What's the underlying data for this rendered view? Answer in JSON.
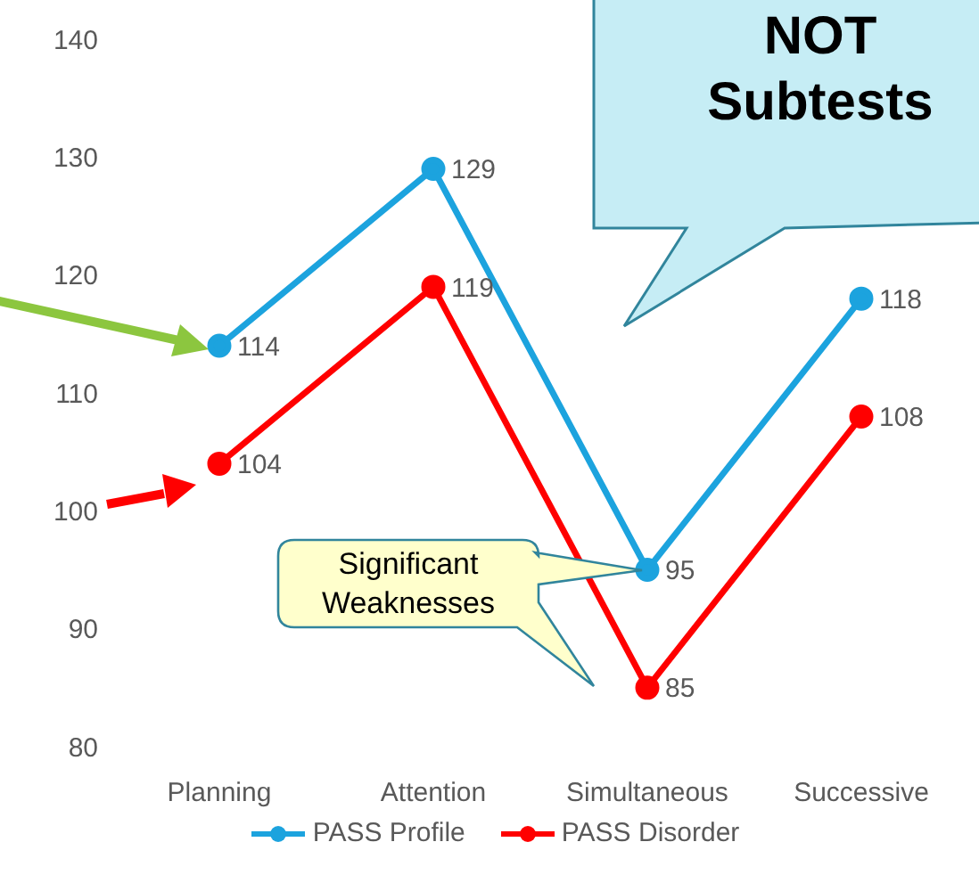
{
  "chart_data": {
    "type": "line",
    "categories": [
      "Planning",
      "Attention",
      "Simultaneous",
      "Successive"
    ],
    "series": [
      {
        "name": "PASS Profile",
        "color": "#1ca3de",
        "values": [
          114,
          129,
          95,
          118
        ]
      },
      {
        "name": "PASS Disorder",
        "color": "#ff0000",
        "values": [
          104,
          119,
          85,
          108
        ]
      }
    ],
    "ylim": [
      80,
      140
    ],
    "yticks": [
      80,
      90,
      100,
      110,
      120,
      130,
      140
    ],
    "grid": false,
    "legend": "bottom",
    "marker": "circle",
    "line_style": "solid",
    "data_labels": true,
    "annotations": [
      "NOT Subtests",
      "Significant Weaknesses"
    ]
  }
}
